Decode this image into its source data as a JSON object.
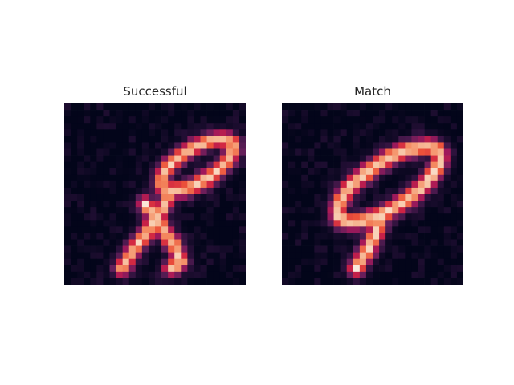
{
  "figure": {
    "panels": [
      {
        "title": "Successful",
        "digit_shape": "8"
      },
      {
        "title": "Match",
        "digit_shape": "9"
      }
    ],
    "colormap": "rocket",
    "colors": {
      "background": "#ffffff",
      "image_low": "#03051a",
      "image_high": "#faebdd",
      "title_text": "#262626"
    }
  }
}
